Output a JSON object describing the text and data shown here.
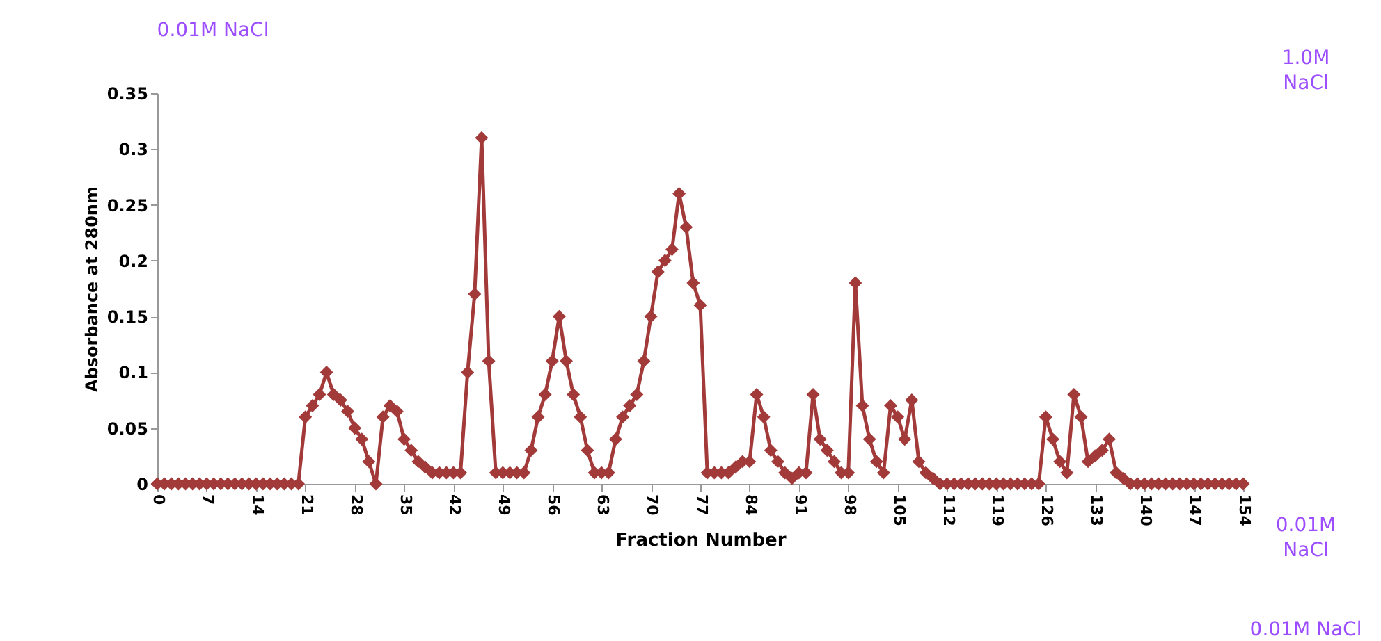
{
  "chart_data": {
    "type": "line",
    "ylabel": "Absorbance at 280nm",
    "xlabel": "Fraction Number",
    "x": [
      0,
      1,
      2,
      3,
      4,
      5,
      6,
      7,
      8,
      9,
      10,
      11,
      12,
      13,
      14,
      15,
      16,
      17,
      18,
      19,
      20,
      21,
      22,
      23,
      24,
      25,
      26,
      27,
      28,
      29,
      30,
      31,
      32,
      33,
      34,
      35,
      36,
      37,
      38,
      39,
      40,
      41,
      42,
      43,
      44,
      45,
      46,
      47,
      48,
      49,
      50,
      51,
      52,
      53,
      54,
      55,
      56,
      57,
      58,
      59,
      60,
      61,
      62,
      63,
      64,
      65,
      66,
      67,
      68,
      69,
      70,
      71,
      72,
      73,
      74,
      75,
      76,
      77,
      78,
      79,
      80,
      81,
      82,
      83,
      84,
      85,
      86,
      87,
      88,
      89,
      90,
      91,
      92,
      93,
      94,
      95,
      96,
      97,
      98,
      99,
      100,
      101,
      102,
      103,
      104,
      105,
      106,
      107,
      108,
      109,
      110,
      111,
      112,
      113,
      114,
      115,
      116,
      117,
      118,
      119,
      120,
      121,
      122,
      123,
      124,
      125,
      126,
      127,
      128,
      129,
      130,
      131,
      132,
      133,
      134,
      135,
      136,
      137,
      138,
      139,
      140,
      141,
      142,
      143,
      144,
      145,
      146,
      147,
      148,
      149,
      150,
      151,
      152,
      153,
      154
    ],
    "series": [
      {
        "color": "#a33a3a",
        "values": [
          0,
          0,
          0,
          0,
          0,
          0,
          0,
          0,
          0,
          0,
          0,
          0,
          0,
          0,
          0,
          0,
          0,
          0,
          0,
          0,
          0,
          0.06,
          0.07,
          0.08,
          0.1,
          0.08,
          0.075,
          0.065,
          0.05,
          0.04,
          0.02,
          0,
          0.06,
          0.07,
          0.065,
          0.04,
          0.03,
          0.02,
          0.015,
          0.01,
          0.01,
          0.01,
          0.01,
          0.01,
          0.1,
          0.17,
          0.31,
          0.11,
          0.01,
          0.01,
          0.01,
          0.01,
          0.01,
          0.03,
          0.06,
          0.08,
          0.11,
          0.15,
          0.11,
          0.08,
          0.06,
          0.03,
          0.01,
          0.01,
          0.01,
          0.04,
          0.06,
          0.07,
          0.08,
          0.11,
          0.15,
          0.19,
          0.2,
          0.21,
          0.26,
          0.23,
          0.18,
          0.16,
          0.01,
          0.01,
          0.01,
          0.01,
          0.015,
          0.02,
          0.02,
          0.08,
          0.06,
          0.03,
          0.02,
          0.01,
          0.005,
          0.01,
          0.01,
          0.08,
          0.04,
          0.03,
          0.02,
          0.01,
          0.01,
          0.18,
          0.07,
          0.04,
          0.02,
          0.01,
          0.07,
          0.06,
          0.04,
          0.075,
          0.02,
          0.01,
          0.005,
          0,
          0,
          0,
          0,
          0,
          0,
          0,
          0,
          0,
          0,
          0,
          0,
          0,
          0,
          0,
          0.06,
          0.04,
          0.02,
          0.01,
          0.08,
          0.06,
          0.02,
          0.025,
          0.03,
          0.04,
          0.01,
          0.005,
          0,
          0,
          0,
          0,
          0,
          0,
          0,
          0,
          0,
          0,
          0,
          0,
          0,
          0,
          0,
          0,
          0
        ]
      }
    ],
    "xlim": [
      0,
      154
    ],
    "xticks": [
      0,
      7,
      14,
      21,
      28,
      35,
      42,
      49,
      56,
      63,
      70,
      77,
      84,
      91,
      98,
      105,
      112,
      119,
      126,
      133,
      140,
      147,
      154
    ],
    "ylim": [
      0,
      0.35
    ],
    "yticks": [
      0,
      0.05,
      0.1,
      0.15,
      0.2,
      0.25,
      0.3,
      0.35
    ],
    "grid": false,
    "legend": false,
    "marker": "diamond",
    "line_style": "solid",
    "annotations": [
      "0.01M NaCl",
      "1.0M NaCl",
      "0.01M NaCl",
      "0.01M NaCl"
    ]
  }
}
